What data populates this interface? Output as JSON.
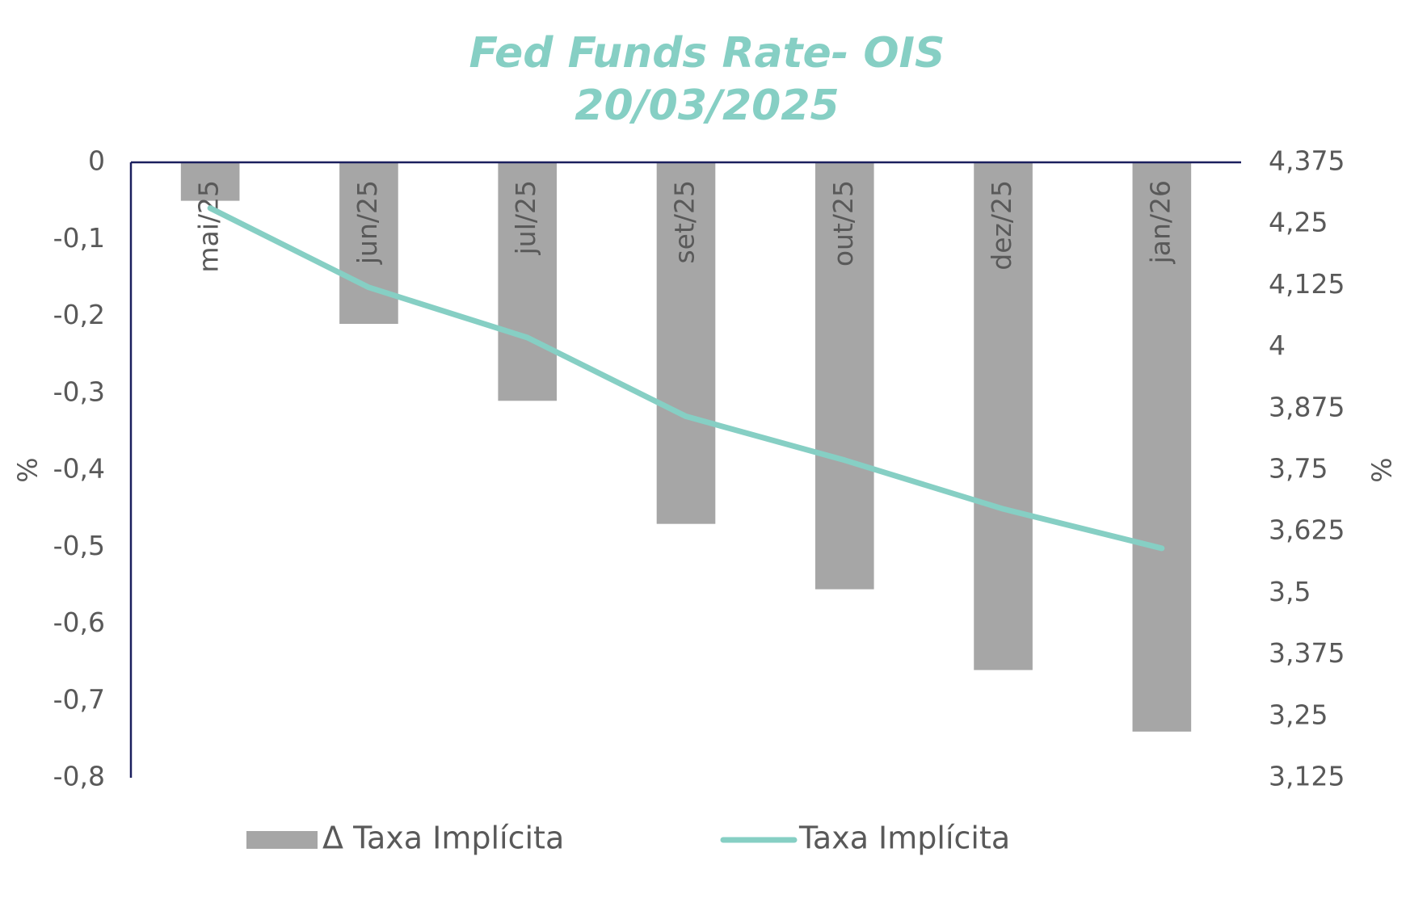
{
  "chart_data": {
    "type": "bar",
    "title": "Fed Funds Rate- OIS",
    "subtitle": "20/03/2025",
    "categories": [
      "mai/25",
      "jun/25",
      "jul/25",
      "set/25",
      "out/25",
      "dez/25",
      "jan/26"
    ],
    "series": [
      {
        "name": "Δ Taxa Implícita",
        "type": "bar",
        "color": "#a6a6a6",
        "values": [
          -0.05,
          -0.21,
          -0.31,
          -0.47,
          -0.555,
          -0.66,
          -0.74
        ]
      },
      {
        "name": "Taxa Implícita",
        "type": "line",
        "axis": "y2",
        "color": "#86cfc4",
        "values": [
          4.282,
          4.121,
          4.019,
          3.859,
          3.77,
          3.671,
          3.591
        ]
      }
    ],
    "y_label": "%",
    "y2_label": "%",
    "ylim": [
      -0.8,
      0
    ],
    "yticks": [
      0,
      {
        "value": -0.1,
        "label": "-0,1"
      },
      {
        "value": -0.2,
        "label": "-0,2"
      },
      {
        "value": -0.3,
        "label": "-0,3"
      },
      {
        "value": -0.4,
        "label": "-0,4"
      },
      {
        "value": -0.5,
        "label": "-0,5"
      },
      {
        "value": -0.6,
        "label": "-0,6"
      },
      {
        "value": -0.7,
        "label": "-0,7"
      },
      {
        "value": -0.8,
        "label": "-0,8"
      }
    ],
    "y2lim": [
      3.125,
      4.375
    ],
    "y2ticks": [
      {
        "value": 4.375,
        "label": "4,375"
      },
      {
        "value": 4.25,
        "label": "4,25"
      },
      {
        "value": 4.125,
        "label": "4,125"
      },
      4,
      {
        "value": 3.875,
        "label": "3,875"
      },
      {
        "value": 3.75,
        "label": "3,75"
      },
      {
        "value": 3.625,
        "label": "3,625"
      },
      {
        "value": 3.5,
        "label": "3,5"
      },
      {
        "value": 3.375,
        "label": "3,375"
      },
      {
        "value": 3.25,
        "label": "3,25"
      },
      {
        "value": 3.125,
        "label": "3,125"
      }
    ],
    "grid": false,
    "legend": "bottom"
  }
}
